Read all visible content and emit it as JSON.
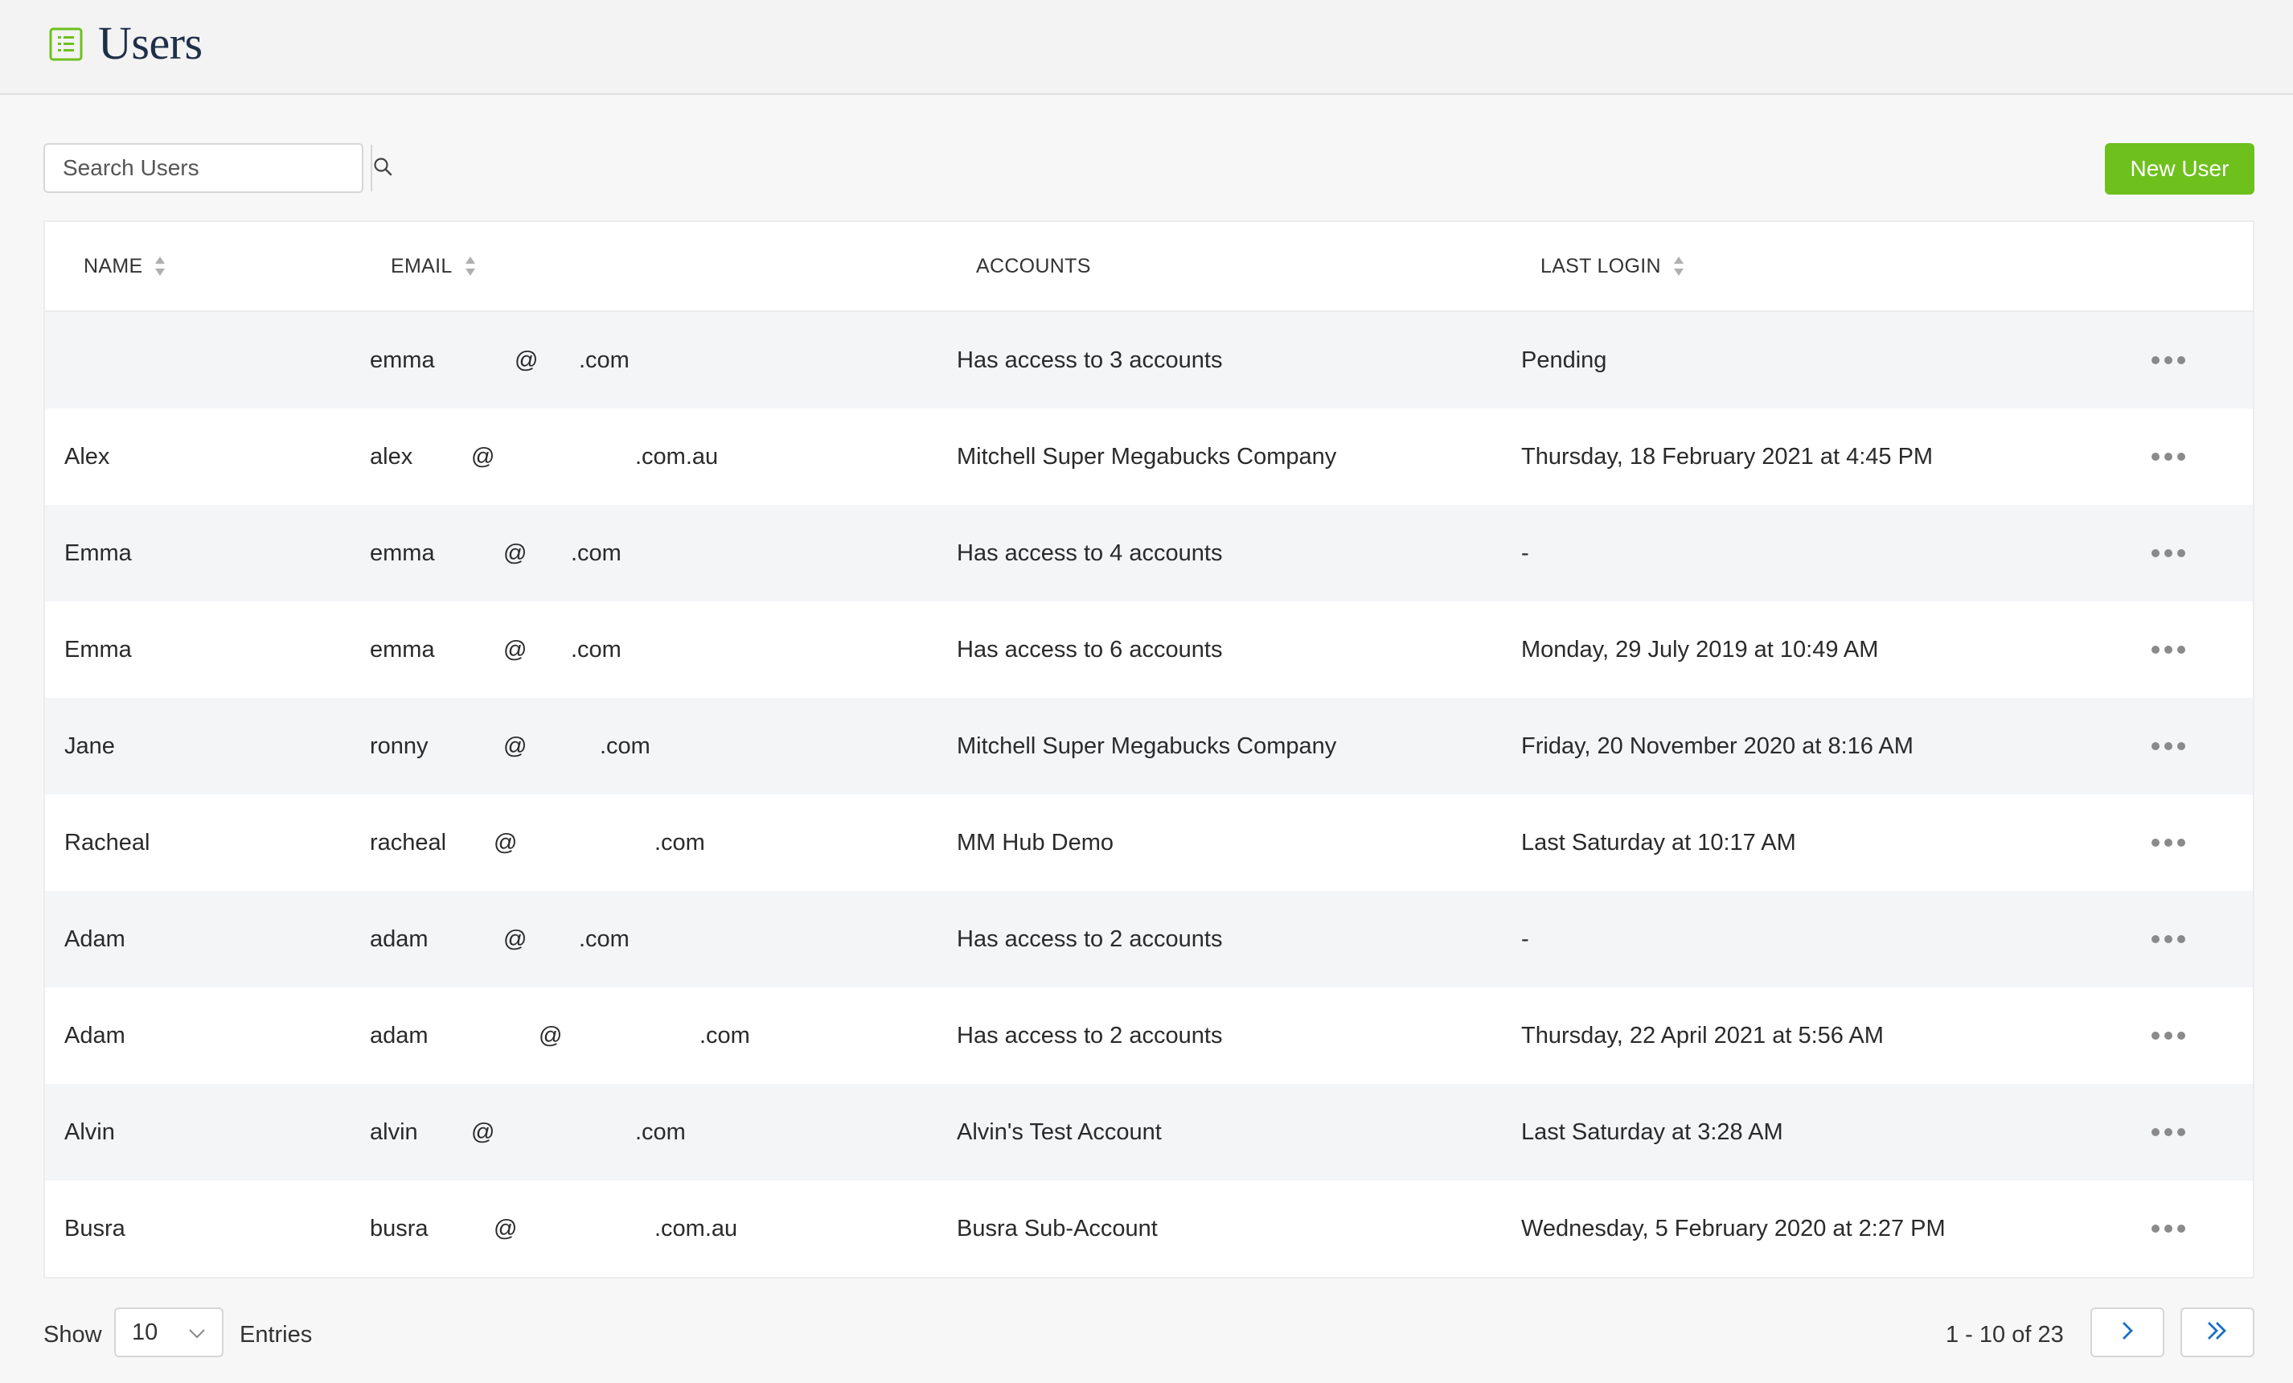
{
  "header": {
    "title": "Users",
    "icon": "list-icon",
    "icon_color": "#6ec01c"
  },
  "search": {
    "placeholder": "Search Users",
    "value": ""
  },
  "new_user_label": "New User",
  "accent_color": "#6ec01c",
  "columns": {
    "name": "NAME",
    "email": "EMAIL",
    "accounts": "ACCOUNTS",
    "last_login": "LAST LOGIN"
  },
  "rows": [
    {
      "name": "",
      "email_user": "emma",
      "email_at": "@",
      "email_domain": ".com",
      "accounts": "Has access to 3 accounts",
      "last_login": "Pending"
    },
    {
      "name": "Alex",
      "email_user": "alex",
      "email_at": "@",
      "email_domain": ".com.au",
      "accounts": "Mitchell Super Megabucks Company",
      "last_login": "Thursday, 18 February 2021 at 4:45 PM"
    },
    {
      "name": "Emma",
      "email_user": "emma",
      "email_at": "@",
      "email_domain": ".com",
      "accounts": "Has access to 4 accounts",
      "last_login": "-"
    },
    {
      "name": "Emma",
      "email_user": "emma",
      "email_at": "@",
      "email_domain": ".com",
      "accounts": "Has access to 6 accounts",
      "last_login": "Monday, 29 July 2019 at 10:49 AM"
    },
    {
      "name": "Jane",
      "email_user": "ronny",
      "email_at": "@",
      "email_domain": ".com",
      "accounts": "Mitchell Super Megabucks Company",
      "last_login": "Friday, 20 November 2020 at 8:16 AM"
    },
    {
      "name": "Racheal",
      "email_user": "racheal",
      "email_at": "@",
      "email_domain": ".com",
      "accounts": "MM Hub Demo",
      "last_login": "Last Saturday at 10:17 AM"
    },
    {
      "name": "Adam",
      "email_user": "adam",
      "email_at": "@",
      "email_domain": ".com",
      "accounts": "Has access to 2 accounts",
      "last_login": "-"
    },
    {
      "name": "Adam",
      "email_user": "adam",
      "email_at": "@",
      "email_domain": ".com",
      "accounts": "Has access to 2 accounts",
      "last_login": "Thursday, 22 April 2021 at 5:56 AM"
    },
    {
      "name": "Alvin",
      "email_user": "alvin",
      "email_at": "@",
      "email_domain": ".com",
      "accounts": "Alvin's Test Account",
      "last_login": "Last Saturday at 3:28 AM"
    },
    {
      "name": "Busra",
      "email_user": "busra",
      "email_at": "@",
      "email_domain": ".com.au",
      "accounts": "Busra Sub-Account",
      "last_login": "Wednesday, 5 February 2020 at 2:27 PM"
    }
  ],
  "footer": {
    "show_label": "Show",
    "entries_value": "10",
    "entries_label": "Entries",
    "pager_text": "1 - 10 of 23",
    "pager_color": "#1a6fc4"
  }
}
